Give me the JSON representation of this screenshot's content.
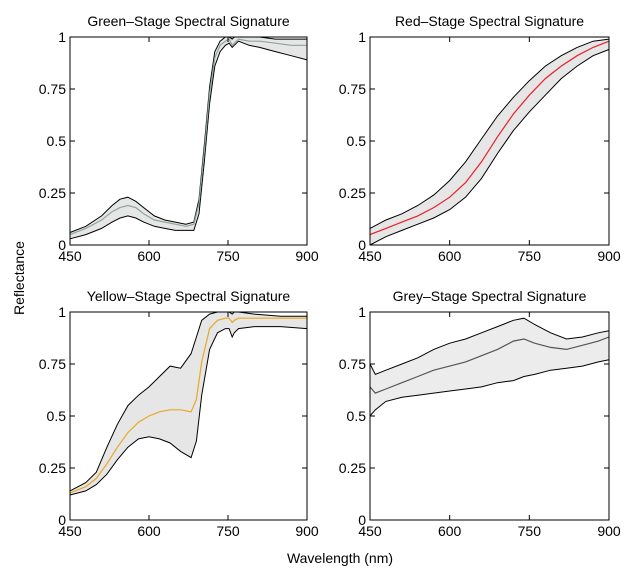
{
  "figure": {
    "xlabel": "Wavelength (nm)",
    "ylabel": "Reflectance"
  },
  "chart_data": [
    {
      "type": "line",
      "title": "Green–Stage Spectral Signature",
      "xlim": [
        450,
        900
      ],
      "ylim": [
        0,
        1
      ],
      "xticks": [
        450,
        600,
        750,
        900
      ],
      "yticks": [
        0,
        0.25,
        0.5,
        0.75,
        1
      ],
      "xtick_labels": [
        "450",
        "600",
        "750",
        "900"
      ],
      "ytick_labels": [
        "0",
        "0.25",
        "0.5",
        "0.75",
        "1"
      ],
      "grid": false,
      "series_color": "#8fa596",
      "band_fill": "#e6e6e6",
      "x": [
        450,
        480,
        510,
        530,
        545,
        560,
        575,
        590,
        610,
        630,
        650,
        670,
        685,
        695,
        705,
        715,
        725,
        735,
        745,
        752,
        758,
        762,
        770,
        790,
        810,
        840,
        870,
        900
      ],
      "lower": [
        0.03,
        0.05,
        0.08,
        0.11,
        0.13,
        0.14,
        0.13,
        0.11,
        0.09,
        0.08,
        0.07,
        0.07,
        0.07,
        0.15,
        0.4,
        0.68,
        0.86,
        0.93,
        0.96,
        0.97,
        0.95,
        0.96,
        0.98,
        0.96,
        0.95,
        0.93,
        0.91,
        0.89
      ],
      "mean": [
        0.05,
        0.08,
        0.12,
        0.16,
        0.18,
        0.19,
        0.18,
        0.15,
        0.12,
        0.11,
        0.1,
        0.09,
        0.1,
        0.2,
        0.45,
        0.73,
        0.9,
        0.96,
        0.98,
        0.99,
        0.96,
        0.97,
        0.99,
        0.98,
        0.98,
        0.97,
        0.96,
        0.96
      ],
      "upper": [
        0.06,
        0.09,
        0.14,
        0.19,
        0.22,
        0.23,
        0.21,
        0.18,
        0.14,
        0.12,
        0.11,
        0.1,
        0.11,
        0.22,
        0.48,
        0.76,
        0.93,
        0.98,
        1.0,
        1.0,
        0.99,
        1.0,
        1.0,
        1.0,
        1.0,
        0.99,
        0.99,
        0.99
      ]
    },
    {
      "type": "line",
      "title": "Red–Stage Spectral Signature",
      "xlim": [
        450,
        900
      ],
      "ylim": [
        0,
        1
      ],
      "xticks": [
        450,
        600,
        750,
        900
      ],
      "yticks": [
        0,
        0.25,
        0.5,
        0.75,
        1
      ],
      "xtick_labels": [
        "450",
        "600",
        "750",
        "900"
      ],
      "ytick_labels": [
        "0",
        "0.25",
        "0.5",
        "0.75",
        "1"
      ],
      "grid": false,
      "series_color": "#e8202a",
      "band_fill": "#e6e6e6",
      "x": [
        450,
        480,
        510,
        540,
        570,
        600,
        630,
        660,
        690,
        720,
        750,
        780,
        810,
        840,
        870,
        900
      ],
      "lower": [
        0.0,
        0.04,
        0.07,
        0.1,
        0.13,
        0.17,
        0.23,
        0.32,
        0.44,
        0.55,
        0.64,
        0.72,
        0.8,
        0.86,
        0.91,
        0.94
      ],
      "mean": [
        0.05,
        0.08,
        0.11,
        0.14,
        0.18,
        0.23,
        0.3,
        0.4,
        0.52,
        0.63,
        0.72,
        0.8,
        0.86,
        0.91,
        0.95,
        0.98
      ],
      "upper": [
        0.08,
        0.12,
        0.15,
        0.19,
        0.24,
        0.31,
        0.4,
        0.51,
        0.62,
        0.71,
        0.79,
        0.86,
        0.91,
        0.95,
        0.98,
        0.99
      ]
    },
    {
      "type": "line",
      "title": "Yellow–Stage Spectral Signature",
      "xlim": [
        450,
        900
      ],
      "ylim": [
        0,
        1
      ],
      "xticks": [
        450,
        600,
        750,
        900
      ],
      "yticks": [
        0,
        0.25,
        0.5,
        0.75,
        1
      ],
      "xtick_labels": [
        "450",
        "600",
        "750",
        "900"
      ],
      "ytick_labels": [
        "0",
        "0.25",
        "0.5",
        "0.75",
        "1"
      ],
      "grid": false,
      "series_color": "#e8a824",
      "band_fill": "#e6e6e6",
      "x": [
        450,
        480,
        500,
        520,
        540,
        560,
        580,
        600,
        620,
        640,
        660,
        680,
        690,
        700,
        715,
        730,
        745,
        752,
        758,
        762,
        770,
        800,
        850,
        900
      ],
      "lower": [
        0.12,
        0.14,
        0.17,
        0.22,
        0.29,
        0.35,
        0.39,
        0.4,
        0.39,
        0.37,
        0.33,
        0.3,
        0.38,
        0.6,
        0.82,
        0.9,
        0.92,
        0.92,
        0.88,
        0.9,
        0.92,
        0.93,
        0.93,
        0.92
      ],
      "mean": [
        0.13,
        0.16,
        0.2,
        0.27,
        0.35,
        0.42,
        0.47,
        0.5,
        0.52,
        0.53,
        0.53,
        0.52,
        0.58,
        0.76,
        0.92,
        0.96,
        0.97,
        0.97,
        0.95,
        0.96,
        0.97,
        0.97,
        0.97,
        0.97
      ],
      "upper": [
        0.14,
        0.18,
        0.23,
        0.35,
        0.46,
        0.55,
        0.6,
        0.64,
        0.69,
        0.74,
        0.73,
        0.8,
        0.88,
        0.96,
        0.99,
        1.0,
        1.0,
        1.0,
        0.99,
        1.0,
        1.0,
        0.99,
        0.98,
        0.98
      ]
    },
    {
      "type": "line",
      "title": "Grey–Stage Spectral Signature",
      "xlim": [
        450,
        900
      ],
      "ylim": [
        0,
        1
      ],
      "xticks": [
        450,
        600,
        750,
        900
      ],
      "yticks": [
        0,
        0.25,
        0.5,
        0.75,
        1
      ],
      "xtick_labels": [
        "450",
        "600",
        "750",
        "900"
      ],
      "ytick_labels": [
        "0",
        "0.25",
        "0.5",
        "0.75",
        "1"
      ],
      "grid": false,
      "series_color": "#555555",
      "band_fill": "#ececec",
      "x": [
        450,
        460,
        480,
        510,
        540,
        570,
        600,
        630,
        660,
        690,
        720,
        740,
        760,
        790,
        820,
        850,
        880,
        900
      ],
      "lower": [
        0.5,
        0.53,
        0.57,
        0.59,
        0.6,
        0.61,
        0.62,
        0.63,
        0.64,
        0.66,
        0.67,
        0.69,
        0.7,
        0.72,
        0.73,
        0.74,
        0.76,
        0.77
      ],
      "mean": [
        0.64,
        0.61,
        0.63,
        0.66,
        0.69,
        0.72,
        0.74,
        0.76,
        0.79,
        0.82,
        0.86,
        0.87,
        0.85,
        0.83,
        0.82,
        0.84,
        0.86,
        0.88
      ],
      "upper": [
        0.75,
        0.7,
        0.72,
        0.75,
        0.78,
        0.82,
        0.85,
        0.87,
        0.9,
        0.93,
        0.96,
        0.97,
        0.94,
        0.9,
        0.87,
        0.88,
        0.9,
        0.91
      ]
    }
  ]
}
